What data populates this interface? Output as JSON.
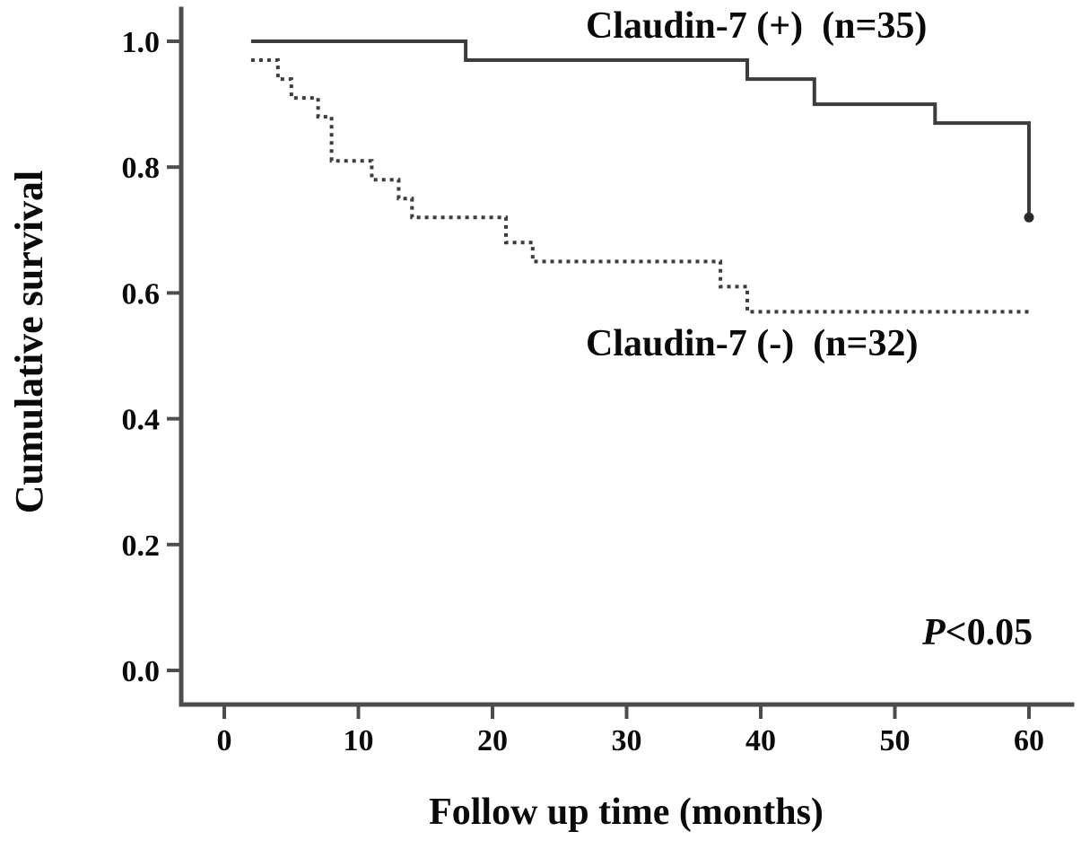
{
  "figure": {
    "background": "#ffffff",
    "text_color": "#0a0a0a",
    "axis_color": "#4d4d4d"
  },
  "chart_data": {
    "type": "line",
    "subtype": "kaplan-meier-step-curves",
    "title": "",
    "xlabel": "Follow up time (months)",
    "ylabel": "Cumulative survival",
    "x_ticks": [
      0,
      10,
      20,
      30,
      40,
      50,
      60
    ],
    "y_ticks": [
      "1.0",
      "0.8",
      "0.6",
      "0.4",
      "0.2",
      "0.0"
    ],
    "xlim": [
      0,
      63
    ],
    "ylim": [
      0.0,
      1.05
    ],
    "grid": false,
    "legend_position": "labels-on-plot",
    "annotations": {
      "p_symbol": "P",
      "p_rest": "<0.05"
    },
    "series": [
      {
        "name": "claudin7-positive",
        "label": "Claudin-7 (+)  (n=35)",
        "n": 35,
        "style": "solid",
        "color": "#3d3d3d",
        "steps": [
          [
            2,
            1.0
          ],
          [
            18,
            0.97
          ],
          [
            39,
            0.94
          ],
          [
            44,
            0.9
          ],
          [
            53,
            0.87
          ],
          [
            60,
            0.72
          ]
        ],
        "terminal_marker": true
      },
      {
        "name": "claudin7-negative",
        "label": "Claudin-7 (-)  (n=32)",
        "n": 32,
        "style": "dotted",
        "color": "#3d3d3d",
        "steps": [
          [
            2,
            0.97
          ],
          [
            4,
            0.94
          ],
          [
            5,
            0.91
          ],
          [
            7,
            0.88
          ],
          [
            8,
            0.81
          ],
          [
            11,
            0.78
          ],
          [
            13,
            0.75
          ],
          [
            14,
            0.72
          ],
          [
            21,
            0.68
          ],
          [
            23,
            0.65
          ],
          [
            37,
            0.61
          ],
          [
            39,
            0.57
          ],
          [
            60,
            0.57
          ]
        ],
        "terminal_marker": false
      }
    ]
  }
}
